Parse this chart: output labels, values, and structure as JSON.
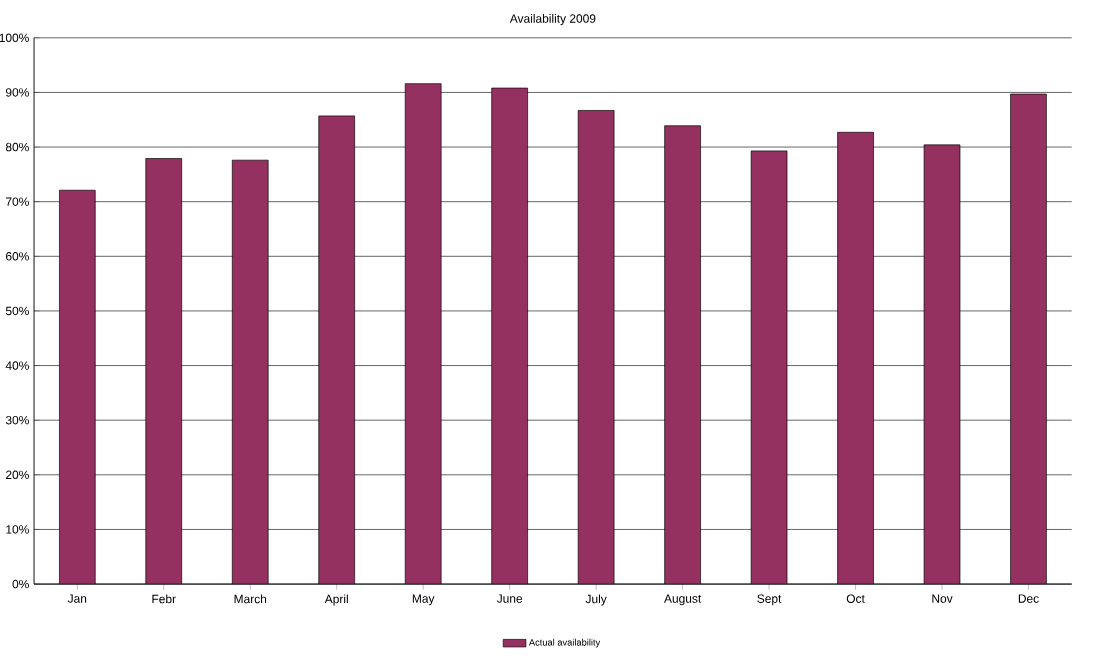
{
  "chart_data": {
    "type": "bar",
    "title": "Availability 2009",
    "categories": [
      "Jan",
      "Febr",
      "March",
      "April",
      "May",
      "June",
      "July",
      "August",
      "Sept",
      "Oct",
      "Nov",
      "Dec"
    ],
    "series": [
      {
        "name": "Actual availability",
        "color": "#943160",
        "values": [
          72.1,
          77.9,
          77.6,
          85.7,
          91.6,
          90.8,
          86.7,
          83.9,
          79.3,
          82.7,
          80.4,
          89.7
        ]
      }
    ],
    "ylim": [
      0,
      100
    ],
    "yticks": [
      {
        "value": 0,
        "label": "0%"
      },
      {
        "value": 10,
        "label": "10%"
      },
      {
        "value": 20,
        "label": "20%"
      },
      {
        "value": 30,
        "label": "30%"
      },
      {
        "value": 40,
        "label": "40%"
      },
      {
        "value": 50,
        "label": "50%"
      },
      {
        "value": 60,
        "label": "60%"
      },
      {
        "value": 70,
        "label": "70%"
      },
      {
        "value": 80,
        "label": "80%"
      },
      {
        "value": 90,
        "label": "90%"
      },
      {
        "value": 100,
        "label": "100%"
      }
    ],
    "grid": "y",
    "legend": "bottom"
  }
}
